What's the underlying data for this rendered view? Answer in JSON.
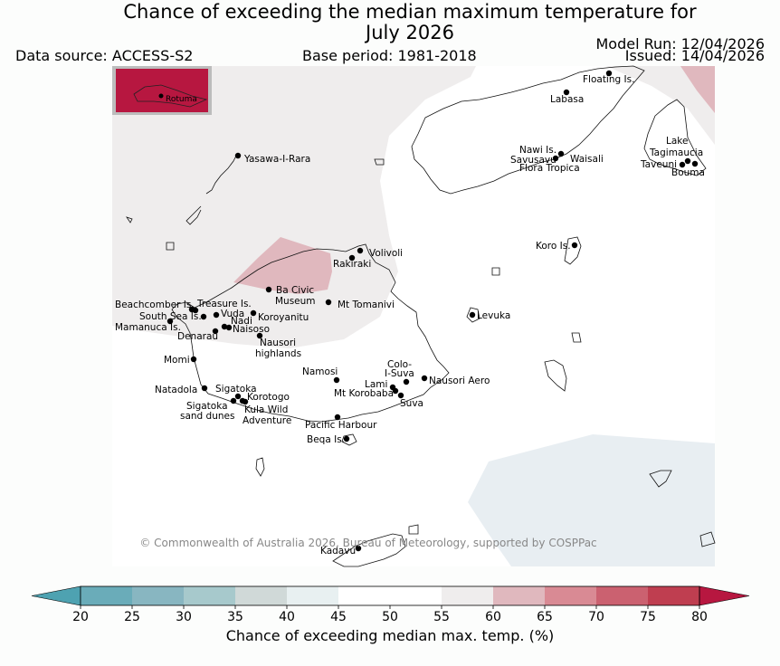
{
  "title_line1": "Chance of exceeding the median maximum temperature for",
  "title_line2": "July 2026",
  "data_source": "Data source: ACCESS-S2",
  "base_period": "Base period: 1981-2018",
  "model_run": "Model Run: 12/04/2026",
  "issued": "Issued: 14/04/2026",
  "inset_label": "Rotuma",
  "copyright": "© Commonwealth of Australia 2026, Bureau of Meteorology, supported by COSPPac",
  "places": {
    "floating_is": "Floating Is.",
    "labasa": "Labasa",
    "yasawa": "Yasawa-I-Rara",
    "nawi": "Nawi Is.",
    "savusavu": "Savusavu",
    "waisali": "Waisali",
    "flora": "Flora Tropica",
    "lake": "Lake",
    "tagimaucia": "Tagimaucia",
    "taveuni": "Taveuni",
    "bouma": "Bouma",
    "koro": "Koro Is.",
    "volivoli": "Volivoli",
    "rakiraki": "Rakiraki",
    "ba_civic_1": "Ba Civic",
    "ba_civic_2": "Museum",
    "mt_tomanivi": "Mt Tomanivi",
    "beachcomber": "Beachcomber Is.",
    "treasure": "Treasure Is.",
    "south_sea": "South Sea Is.",
    "vuda": "Vuda",
    "nadi": "Nadi",
    "koroyanitu": "Koroyanitu",
    "mamanuca": "Mamanuca Is.",
    "naisoso": "Naisoso",
    "denarau": "Denarau",
    "nausori_h1": "Nausori",
    "nausori_h2": "highlands",
    "levuka": "Levuka",
    "momi": "Momi",
    "namosi": "Namosi",
    "colo1": "Colo-",
    "colo2": "I-Suva",
    "nausori_aero": "Nausori Aero",
    "lami": "Lami",
    "mt_korobaba": "Mt Korobaba",
    "suva": "Suva",
    "natadola": "Natadola",
    "sigatoka": "Sigatoka",
    "korotogo": "Korotogo",
    "sigatoka_sd1": "Sigatoka",
    "sigatoka_sd2": "sand dunes",
    "kula1": "Kula Wild",
    "kula2": "Adventure",
    "pacific_harbour": "Pacific Harbour",
    "beqa": "Beqa Is.",
    "kadavu": "Kadavu"
  },
  "colorbar": {
    "label": "Chance of exceeding median max. temp. (%)",
    "ticks": [
      "20",
      "25",
      "30",
      "35",
      "40",
      "45",
      "50",
      "55",
      "60",
      "65",
      "70",
      "75",
      "80"
    ],
    "colors": [
      "#6aacb9",
      "#88b6c1",
      "#a7c9cc",
      "#d0d9d8",
      "#e8f0f1",
      "#ffffff",
      "#ffffff",
      "#efeded",
      "#e0b8be",
      "#d98a94",
      "#cb6170",
      "#bf3e50"
    ],
    "under_color": "#4ea2b1",
    "over_color": "#b71740"
  }
}
